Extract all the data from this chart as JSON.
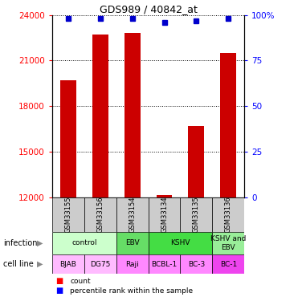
{
  "title": "GDS989 / 40842_at",
  "samples": [
    "GSM33155",
    "GSM33156",
    "GSM33154",
    "GSM33134",
    "GSM33135",
    "GSM33136"
  ],
  "counts": [
    19700,
    22700,
    22800,
    12150,
    16700,
    21500
  ],
  "percentiles": [
    98,
    98,
    98,
    96,
    97,
    98
  ],
  "ylim_left": [
    12000,
    24000
  ],
  "ylim_right": [
    0,
    100
  ],
  "yticks_left": [
    12000,
    15000,
    18000,
    21000,
    24000
  ],
  "yticks_right": [
    0,
    25,
    50,
    75,
    100
  ],
  "bar_color": "#cc0000",
  "dot_color": "#0000cc",
  "sample_bg": "#cccccc",
  "bar_width": 0.5,
  "infection_data": [
    [
      0,
      2,
      "control",
      "#ccffcc"
    ],
    [
      2,
      3,
      "EBV",
      "#66dd66"
    ],
    [
      3,
      5,
      "KSHV",
      "#44dd44"
    ],
    [
      5,
      6,
      "KSHV and\nEBV",
      "#99ee99"
    ]
  ],
  "cell_data": [
    [
      0,
      1,
      "BJAB",
      "#ffbbff"
    ],
    [
      1,
      2,
      "DG75",
      "#ffbbff"
    ],
    [
      2,
      3,
      "Raji",
      "#ff88ff"
    ],
    [
      3,
      4,
      "BCBL-1",
      "#ff88ff"
    ],
    [
      4,
      5,
      "BC-3",
      "#ff88ff"
    ],
    [
      5,
      6,
      "BC-1",
      "#ee44ee"
    ]
  ]
}
